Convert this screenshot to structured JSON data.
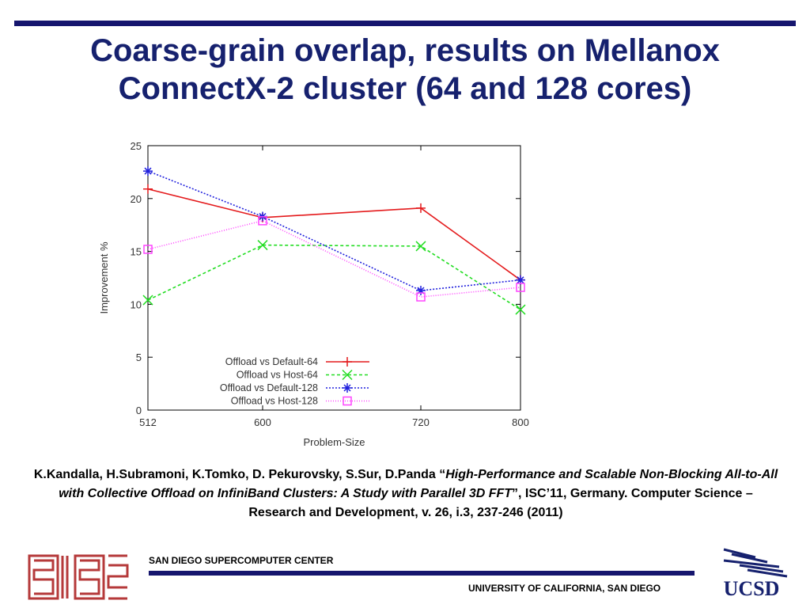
{
  "slide": {
    "title_line1": "Coarse-grain overlap, results on Mellanox",
    "title_line2": "ConnectX-2 cluster (64 and 128 cores)",
    "citation_authors": "K.Kandalla, H.Subramoni, K.Tomko, D. Pekurovsky, S.Sur, D.Panda “",
    "citation_title": "High-Performance and Scalable Non-Blocking All-to-All with Collective Offload on InfiniBand Clusters: A Study with Parallel 3D FFT",
    "citation_rest": "”, ISC’11, Germany. Computer Science – Research and Development,      v. 26, i.3, 237-246 (2011)",
    "footer_left": "SAN DIEGO SUPERCOMPUTER CENTER",
    "footer_right": "UNIVERSITY OF CALIFORNIA, SAN DIEGO",
    "ucsd_logo_text": "UCSD",
    "colors": {
      "title": "#16216e",
      "rule": "#16166e"
    }
  },
  "chart_data": {
    "type": "line",
    "title": "",
    "xlabel": "Problem-Size",
    "ylabel": "Improvement %",
    "categories": [
      "512",
      "600",
      "720",
      "800"
    ],
    "ylim": [
      0,
      25
    ],
    "yticks": [
      "0",
      "5",
      "10",
      "15",
      "20",
      "25"
    ],
    "legend_position": "bottom-left",
    "grid": false,
    "series": [
      {
        "name": "Offload vs Default-64",
        "values": [
          20.9,
          18.2,
          19.1,
          12.3
        ],
        "color": "#e41a1c",
        "marker": "plus",
        "dash": ""
      },
      {
        "name": "Offload vs Host-64",
        "values": [
          10.4,
          15.6,
          15.5,
          9.5
        ],
        "color": "#22dd22",
        "marker": "cross",
        "dash": "4,3"
      },
      {
        "name": "Offload vs Default-128",
        "values": [
          22.6,
          18.3,
          11.3,
          12.3
        ],
        "color": "#2222dd",
        "marker": "star",
        "dash": "2,2"
      },
      {
        "name": "Offload vs Host-128",
        "values": [
          15.2,
          17.9,
          10.7,
          11.6
        ],
        "color": "#ff44ff",
        "marker": "square",
        "dash": "1,2"
      }
    ]
  }
}
